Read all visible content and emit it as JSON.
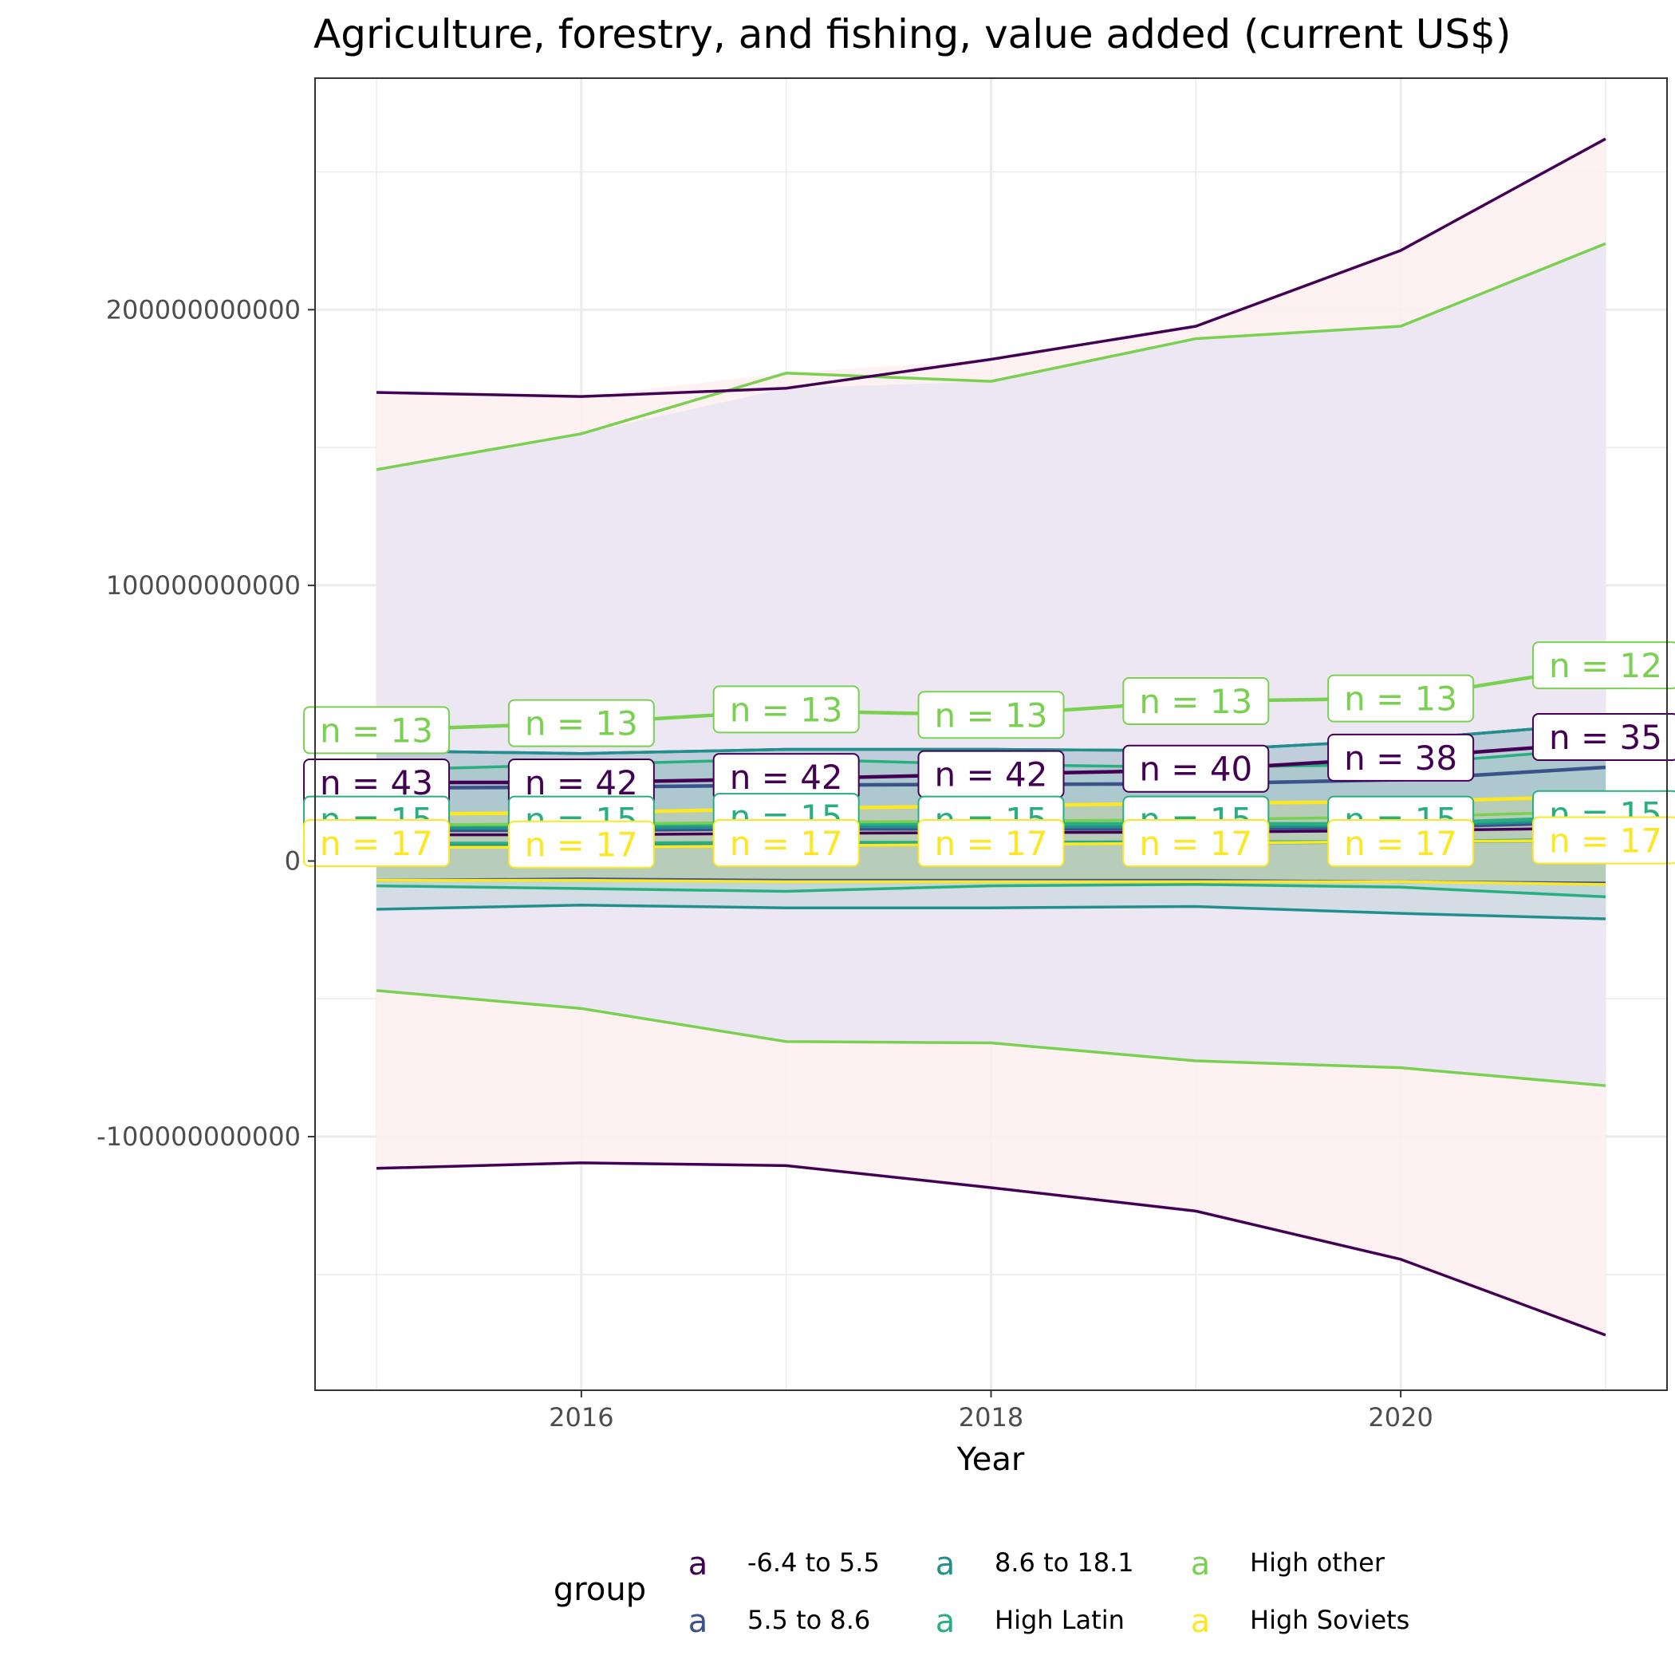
{
  "chart_data": {
    "type": "line",
    "title": "Agriculture, forestry, and fishing, value added (current US$)",
    "xlabel": "Year",
    "ylabel": "",
    "x": [
      2015,
      2016,
      2017,
      2018,
      2019,
      2020,
      2021
    ],
    "x_ticks": [
      2016,
      2018,
      2020
    ],
    "x_tick_labels": [
      "2016",
      "2018",
      "2020"
    ],
    "xlim": [
      2014.7,
      2021.3
    ],
    "y_ticks": [
      200000000000,
      100000000000,
      0,
      -100000000000
    ],
    "y_tick_labels": [
      "200000000000",
      "100000000000",
      "0",
      "-100000000000"
    ],
    "ylim": [
      -192000000000,
      284000000000
    ],
    "grid": true,
    "legend": {
      "title": "group",
      "position": "bottom",
      "key_glyph": "a"
    },
    "series": [
      {
        "name": "-6.4 to 5.5",
        "color": "#440154",
        "mean": [
          28500000000,
          28500000000,
          29800000000,
          31500000000,
          33000000000,
          37500000000,
          43000000000
        ],
        "upper": [
          170000000000,
          168500000000,
          171500000000,
          182000000000,
          194000000000,
          221500000000,
          262000000000
        ],
        "lower": [
          -111500000000,
          -109500000000,
          -110500000000,
          -118500000000,
          -127000000000,
          -144500000000,
          -172000000000
        ],
        "median": [
          9500000000,
          9500000000,
          10000000000,
          10300000000,
          10500000000,
          11000000000,
          12000000000
        ],
        "n_labels": [
          "n = 43",
          "n = 42",
          "n = 42",
          "n = 42",
          "n = 40",
          "n = 38",
          "n = 35"
        ],
        "label_y": [
          28500000000,
          28500000000,
          30500000000,
          31500000000,
          33500000000,
          37500000000,
          45000000000
        ]
      },
      {
        "name": "5.5 to 8.6",
        "color": "#3B528B",
        "mean": [
          26500000000,
          26800000000,
          27500000000,
          27800000000,
          28000000000,
          29500000000,
          34000000000
        ],
        "upper": [
          40000000000,
          39000000000,
          40500000000,
          40500000000,
          40000000000,
          44000000000,
          50000000000
        ],
        "lower": [
          -7000000000,
          -6500000000,
          -7000000000,
          -7000000000,
          -7000000000,
          -7500000000,
          -8000000000
        ],
        "median": [
          11000000000,
          11000000000,
          11500000000,
          11500000000,
          11500000000,
          12000000000,
          14000000000
        ]
      },
      {
        "name": "8.6 to 18.1",
        "color": "#21908C",
        "mean": [
          12000000000,
          12000000000,
          12500000000,
          12500000000,
          12500000000,
          13000000000,
          15000000000
        ],
        "upper": [
          40000000000,
          39000000000,
          40500000000,
          40500000000,
          40000000000,
          44000000000,
          50000000000
        ],
        "lower": [
          -17500000000,
          -16000000000,
          -17000000000,
          -17000000000,
          -16500000000,
          -19000000000,
          -21000000000
        ],
        "median": [
          6000000000,
          6000000000,
          6200000000,
          6500000000,
          6500000000,
          6800000000,
          7500000000
        ]
      },
      {
        "name": "High Latin",
        "color": "#29AF7F",
        "mean": [
          13000000000,
          13000000000,
          13500000000,
          13500000000,
          13500000000,
          13500000000,
          16000000000
        ],
        "upper": [
          33000000000,
          35000000000,
          37000000000,
          35000000000,
          34000000000,
          35000000000,
          41000000000
        ],
        "lower": [
          -9000000000,
          -10000000000,
          -11000000000,
          -9000000000,
          -8500000000,
          -9500000000,
          -13000000000
        ],
        "median": [
          6500000000,
          6500000000,
          6800000000,
          6800000000,
          7000000000,
          7000000000,
          8000000000
        ],
        "n_labels": [
          "n = 15",
          "n = 15",
          "n = 15",
          "n = 15",
          "n = 15",
          "n = 15",
          "n = 15"
        ],
        "label_y": [
          15000000000,
          15000000000,
          16000000000,
          15000000000,
          15000000000,
          15000000000,
          17000000000
        ]
      },
      {
        "name": "High other",
        "color": "#7AD151",
        "mean": [
          47500000000,
          50000000000,
          54500000000,
          53000000000,
          58000000000,
          59000000000,
          71000000000
        ],
        "upper": [
          142000000000,
          155000000000,
          177000000000,
          174000000000,
          189500000000,
          194000000000,
          224000000000
        ],
        "lower": [
          -47000000000,
          -53500000000,
          -65500000000,
          -66000000000,
          -72500000000,
          -75000000000,
          -81500000000
        ],
        "median": [
          13000000000,
          13500000000,
          14000000000,
          14500000000,
          15000000000,
          16000000000,
          18000000000
        ],
        "n_labels": [
          "n = 13",
          "n = 13",
          "n = 13",
          "n = 13",
          "n = 13",
          "n = 13",
          "n = 12"
        ],
        "label_y": [
          47500000000,
          50000000000,
          55000000000,
          53000000000,
          58000000000,
          59000000000,
          71000000000
        ]
      },
      {
        "name": "High Soviets",
        "color": "#FDE725",
        "mean": [
          17000000000,
          17500000000,
          19000000000,
          20000000000,
          21000000000,
          21500000000,
          23500000000
        ],
        "upper": [
          17000000000,
          17500000000,
          19000000000,
          20000000000,
          21000000000,
          21500000000,
          23500000000
        ],
        "lower": [
          -7000000000,
          -7000000000,
          -7500000000,
          -7500000000,
          -7500000000,
          -7500000000,
          -8500000000
        ],
        "median": [
          5000000000,
          5000000000,
          5500000000,
          6000000000,
          6500000000,
          7000000000,
          7500000000
        ],
        "n_labels": [
          "n = 17",
          "n = 17",
          "n = 17",
          "n = 17",
          "n = 17",
          "n = 17",
          "n = 17"
        ],
        "label_y": [
          6500000000,
          6000000000,
          6500000000,
          6500000000,
          6500000000,
          6500000000,
          7500000000
        ]
      }
    ],
    "outer_band": {
      "color": "#FDEFEF",
      "upper": [
        170000000000,
        168500000000,
        177000000000,
        182000000000,
        194000000000,
        221500000000,
        262000000000
      ],
      "lower": [
        -111500000000,
        -109500000000,
        -110500000000,
        -118500000000,
        -127000000000,
        -144500000000,
        -172000000000
      ]
    },
    "inner_band": {
      "color": "#ECE6F2",
      "upper": [
        142000000000,
        155000000000,
        171500000000,
        174000000000,
        189500000000,
        194000000000,
        224000000000
      ],
      "lower": [
        -47000000000,
        -53500000000,
        -65500000000,
        -66000000000,
        -72500000000,
        -75000000000,
        -81500000000
      ]
    }
  }
}
